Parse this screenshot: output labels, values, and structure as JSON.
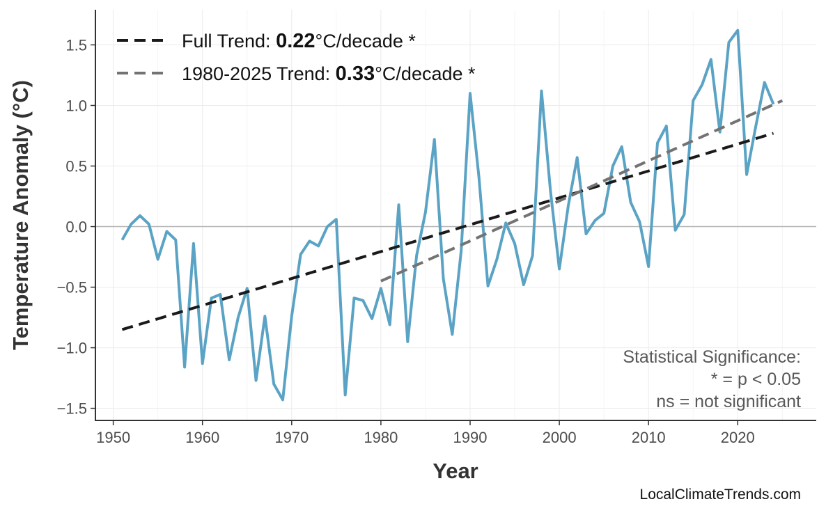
{
  "chart_data": {
    "type": "line",
    "title": "",
    "xlabel": "Year",
    "ylabel": "Temperature Anomaly (°C)",
    "xlim": [
      1948,
      2028.8
    ],
    "ylim": [
      -1.6,
      1.79
    ],
    "xticks": [
      1950,
      1960,
      1970,
      1980,
      1990,
      2000,
      2010,
      2020
    ],
    "yticks": [
      -1.5,
      -1.0,
      -0.5,
      0.0,
      0.5,
      1.0,
      1.5
    ],
    "ytick_labels": [
      "−1.5",
      "−1.0",
      "−0.5",
      "0.0",
      "0.5",
      "1.0",
      "1.5"
    ],
    "grid": true,
    "legend_position": "top-left",
    "series": [
      {
        "color": "#5BA3C4",
        "x": [
          1951,
          1952,
          1953,
          1954,
          1955,
          1956,
          1957,
          1958,
          1959,
          1960,
          1961,
          1962,
          1963,
          1964,
          1965,
          1966,
          1967,
          1968,
          1969,
          1970,
          1971,
          1972,
          1973,
          1974,
          1975,
          1976,
          1977,
          1978,
          1979,
          1980,
          1981,
          1982,
          1983,
          1984,
          1985,
          1986,
          1987,
          1988,
          1989,
          1990,
          1991,
          1992,
          1993,
          1994,
          1995,
          1996,
          1997,
          1998,
          1999,
          2000,
          2001,
          2002,
          2003,
          2004,
          2005,
          2006,
          2007,
          2008,
          2009,
          2010,
          2011,
          2012,
          2013,
          2014,
          2015,
          2016,
          2017,
          2018,
          2019,
          2020,
          2021,
          2022,
          2023,
          2024
        ],
        "y": [
          -0.11,
          0.02,
          0.09,
          0.02,
          -0.27,
          -0.04,
          -0.11,
          -1.16,
          -0.14,
          -1.13,
          -0.59,
          -0.56,
          -1.1,
          -0.75,
          -0.51,
          -1.27,
          -0.74,
          -1.3,
          -1.43,
          -0.74,
          -0.23,
          -0.12,
          -0.16,
          0.0,
          0.06,
          -1.39,
          -0.59,
          -0.61,
          -0.76,
          -0.51,
          -0.81,
          0.18,
          -0.95,
          -0.24,
          0.12,
          0.72,
          -0.43,
          -0.89,
          -0.2,
          1.1,
          0.4,
          -0.49,
          -0.27,
          0.03,
          -0.14,
          -0.48,
          -0.24,
          1.12,
          0.3,
          -0.35,
          0.17,
          0.57,
          -0.06,
          0.05,
          0.11,
          0.5,
          0.66,
          0.2,
          0.04,
          -0.33,
          0.69,
          0.83,
          -0.03,
          0.1,
          1.04,
          1.17,
          1.38,
          0.78,
          1.52,
          1.62,
          0.43,
          0.82,
          1.19,
          1.01
        ]
      }
    ],
    "trends": [
      {
        "label_prefix": "Full Trend: ",
        "value": "0.22",
        "label_suffix": "°C/decade *",
        "color": "#1a1a1a",
        "x": [
          1951,
          2024
        ],
        "y": [
          -0.85,
          0.77
        ]
      },
      {
        "label_prefix": "1980-2025 Trend: ",
        "value": "0.33",
        "label_suffix": "°C/decade *",
        "color": "#737373",
        "x": [
          1980,
          2025
        ],
        "y": [
          -0.45,
          1.04
        ]
      }
    ],
    "annotation": [
      "Statistical Significance:",
      "* = p < 0.05",
      "ns = not significant"
    ],
    "credit": "LocalClimateTrends.com"
  }
}
